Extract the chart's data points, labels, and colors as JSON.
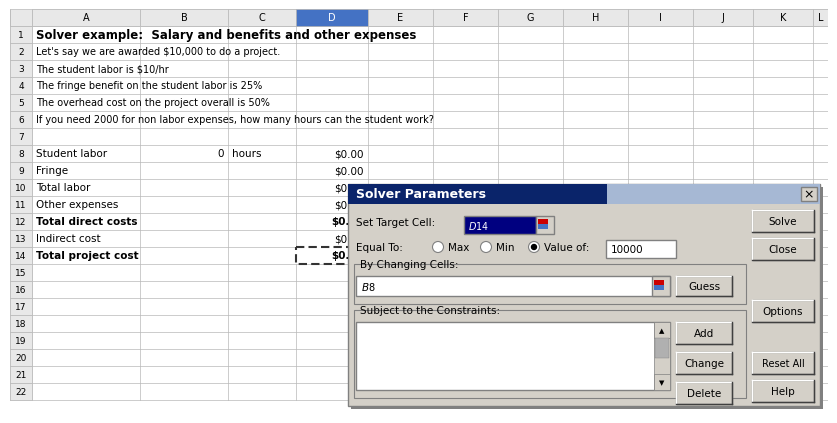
{
  "title_row1": "Solver example:  Salary and benefits and other expenses",
  "desc_rows": [
    {
      "row": 2,
      "text": "Let's say we are awarded $10,000 to do a project."
    },
    {
      "row": 3,
      "text": "The student labor is $10/hr"
    },
    {
      "row": 4,
      "text": "The fringe benefit on the student labor is 25%"
    },
    {
      "row": 5,
      "text": "The overhead cost on the project overall is 50%"
    },
    {
      "row": 6,
      "text": "If you need 2000 for non labor expenses, how many hours can the student work?"
    }
  ],
  "spreadsheet_rows": [
    {
      "row": 8,
      "col_a": "Student labor",
      "col_b": "0",
      "col_b2": "hours",
      "col_d": "$0.00",
      "bold": false
    },
    {
      "row": 9,
      "col_a": "Fringe",
      "col_b": "",
      "col_b2": "",
      "col_d": "$0.00",
      "bold": false
    },
    {
      "row": 10,
      "col_a": "Total labor",
      "col_b": "",
      "col_b2": "",
      "col_d": "$0.00",
      "bold": false
    },
    {
      "row": 11,
      "col_a": "Other expenses",
      "col_b": "",
      "col_b2": "",
      "col_d": "$0.00",
      "bold": false
    },
    {
      "row": 12,
      "col_a": "Total direct costs",
      "col_b": "",
      "col_b2": "",
      "col_d": "$0.00",
      "bold": true
    },
    {
      "row": 13,
      "col_a": "Indirect cost",
      "col_b": "",
      "col_b2": "",
      "col_d": "$0.00",
      "bold": false
    },
    {
      "row": 14,
      "col_a": "Total project cost",
      "col_b": "",
      "col_b2": "",
      "col_d": "$0.00",
      "bold": true
    }
  ],
  "col_headers": [
    "A",
    "B",
    "C",
    "D",
    "E",
    "F",
    "G",
    "H",
    "I",
    "J",
    "K",
    "L"
  ],
  "bg_color": "#ffffff",
  "grid_color": "#b8b8b8",
  "header_bg": "#e8e8e8",
  "header_selected_bg": "#4472c4",
  "dialog_bg": "#d4d0c8"
}
